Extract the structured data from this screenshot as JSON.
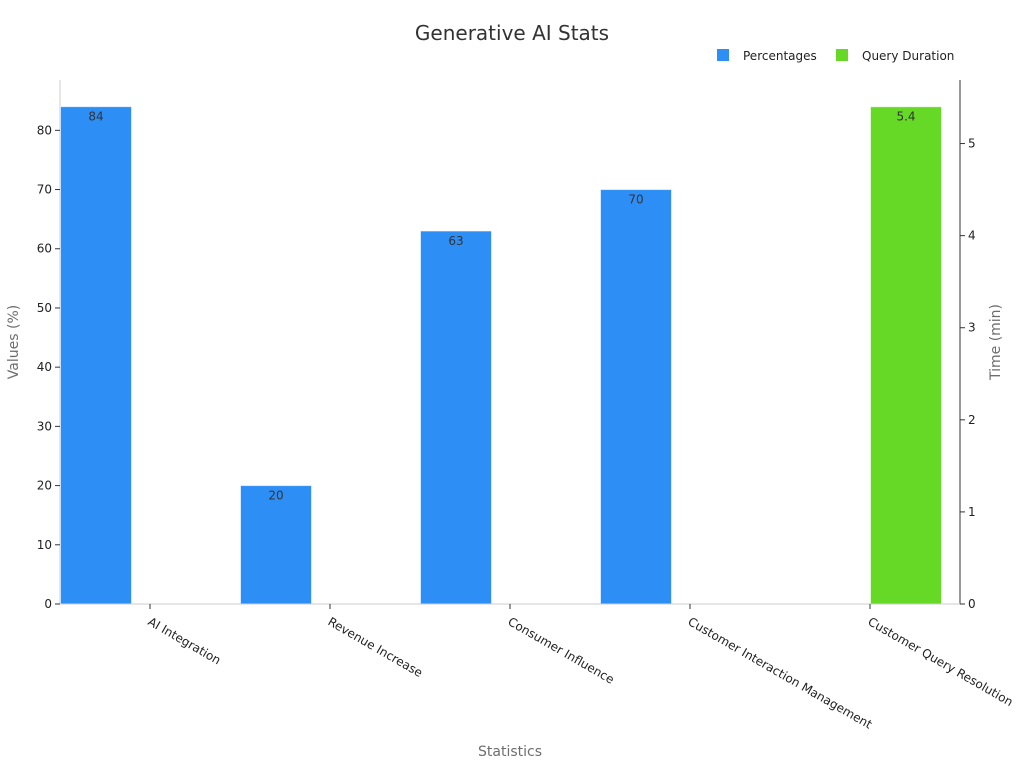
{
  "chart_data": {
    "type": "bar",
    "title": "Generative AI Stats",
    "xlabel": "Statistics",
    "ylabel": "Values (%)",
    "y2label": "Time (min)",
    "categories": [
      "AI Integration",
      "Revenue Increase",
      "Consumer Influence",
      "Customer Interaction Management",
      "Customer Query Resolution"
    ],
    "series": [
      {
        "name": "Percentages",
        "axis": "left",
        "color": "#2d8ff5",
        "values": [
          84,
          20,
          63,
          70,
          null
        ]
      },
      {
        "name": "Query Duration",
        "axis": "right",
        "color": "#66d927",
        "values": [
          null,
          null,
          null,
          null,
          5.4
        ]
      }
    ],
    "ylim": [
      0,
      88.5
    ],
    "yticks": [
      0,
      10,
      20,
      30,
      40,
      50,
      60,
      70,
      80
    ],
    "y2lim": [
      0,
      5.69
    ],
    "y2ticks": [
      0,
      1,
      2,
      3,
      4,
      5
    ],
    "grid": false,
    "legend_position": "top-right"
  }
}
